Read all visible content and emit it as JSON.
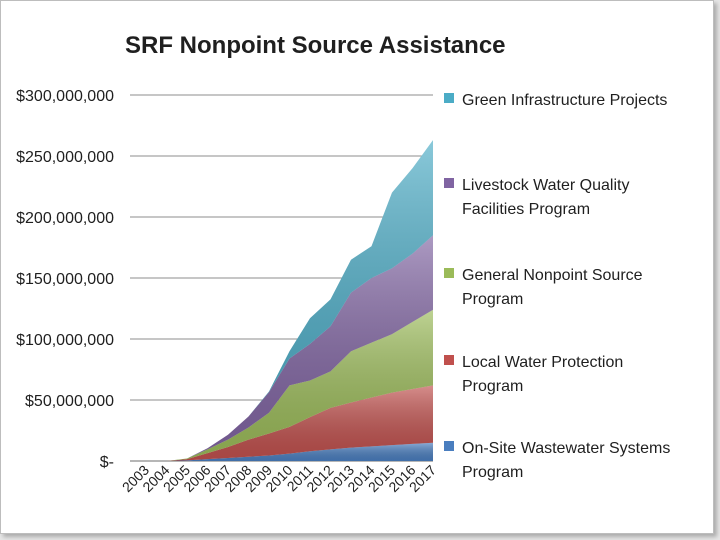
{
  "chart_data": {
    "type": "area",
    "stacked": true,
    "title": "SRF Nonpoint Source Assistance",
    "xlabel": "",
    "ylabel": "",
    "categories": [
      "2003",
      "2004",
      "2005",
      "2006",
      "2007",
      "2008",
      "2009",
      "2010",
      "2011",
      "2012",
      "2013",
      "2014",
      "2015",
      "2016",
      "2017"
    ],
    "ylim": [
      0,
      300000000
    ],
    "y_ticks": [
      {
        "value": 0,
        "label": "$-"
      },
      {
        "value": 50000000,
        "label": "$50,000,000"
      },
      {
        "value": 100000000,
        "label": "$100,000,000"
      },
      {
        "value": 150000000,
        "label": "$150,000,000"
      },
      {
        "value": 200000000,
        "label": "$200,000,000"
      },
      {
        "value": 250000000,
        "label": "$250,000,000"
      },
      {
        "value": 300000000,
        "label": "$300,000,000"
      }
    ],
    "grid": true,
    "legend_position": "right",
    "series": [
      {
        "name": "On-Site Wastewater Systems Program",
        "legend_lines": [
          "On-Site Wastewater Systems",
          "Program"
        ],
        "color": "#4a7ebf",
        "values": [
          0,
          0,
          500000,
          1500000,
          2500000,
          3500000,
          4500000,
          6000000,
          8000000,
          9500000,
          11000000,
          12000000,
          13000000,
          14000000,
          15000000
        ]
      },
      {
        "name": "Local Water Protection Program",
        "legend_lines": [
          "Local Water Protection",
          "Program"
        ],
        "color": "#c0504d",
        "values": [
          0,
          0,
          1000000,
          5000000,
          9000000,
          14000000,
          18000000,
          22000000,
          28000000,
          34000000,
          37000000,
          40000000,
          43000000,
          45000000,
          47000000
        ]
      },
      {
        "name": "General Nonpoint Source Program",
        "legend_lines": [
          "General Nonpoint Source",
          "Program"
        ],
        "color": "#9bbb59",
        "values": [
          0,
          0,
          500000,
          3000000,
          6000000,
          10000000,
          17000000,
          34000000,
          30000000,
          30000000,
          42000000,
          45000000,
          48000000,
          55000000,
          62000000
        ]
      },
      {
        "name": "Livestock Water Quality Facilities Program",
        "legend_lines": [
          "Livestock Water Quality",
          "Facilities Program"
        ],
        "color": "#8064a2",
        "values": [
          0,
          0,
          0,
          1000000,
          4000000,
          9000000,
          17000000,
          22000000,
          30000000,
          37000000,
          48000000,
          53000000,
          54000000,
          56000000,
          61000000
        ]
      },
      {
        "name": "Green Infrastructure Projects",
        "legend_lines": [
          "Green Infrastructure Projects"
        ],
        "color": "#4bacc6",
        "values": [
          0,
          0,
          0,
          0,
          0,
          0,
          500000,
          6000000,
          21000000,
          22000000,
          27000000,
          26000000,
          62000000,
          70000000,
          78000000
        ]
      }
    ]
  }
}
